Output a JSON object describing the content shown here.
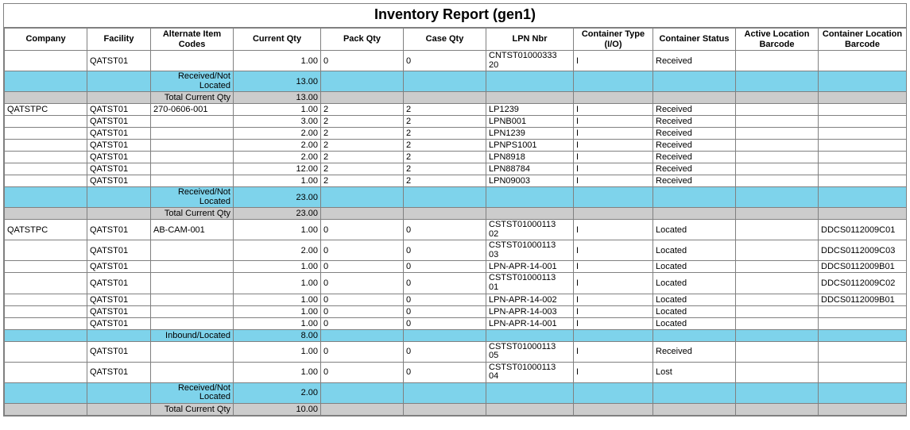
{
  "title": "Inventory Report (gen1)",
  "colors": {
    "highlight": "#7ed3eb",
    "total": "#cccccc",
    "border": "#808080",
    "text": "#000000",
    "background": "#ffffff"
  },
  "columns": [
    "Company",
    "Facility",
    "Alternate Item Codes",
    "Current Qty",
    "Pack Qty",
    "Case Qty",
    "LPN Nbr",
    "Container Type (I/O)",
    "Container Status",
    "Active Location Barcode",
    "Container Location Barcode"
  ],
  "rows": [
    {
      "type": "data",
      "cells": [
        "",
        "QATST01",
        "",
        "1.00",
        "0",
        "0",
        "CNTST01000333\n20",
        "I",
        "Received",
        "",
        ""
      ]
    },
    {
      "type": "highlight",
      "label": "Received/Not Located",
      "qty": "13.00"
    },
    {
      "type": "total",
      "label": "Total Current Qty",
      "qty": "13.00"
    },
    {
      "type": "data",
      "cells": [
        "QATSTPC",
        "QATST01",
        "270-0606-001",
        "1.00",
        "2",
        "2",
        "LP1239",
        "I",
        "Received",
        "",
        ""
      ]
    },
    {
      "type": "data",
      "cells": [
        "",
        "QATST01",
        "",
        "3.00",
        "2",
        "2",
        "LPNB001",
        "I",
        "Received",
        "",
        ""
      ]
    },
    {
      "type": "data",
      "cells": [
        "",
        "QATST01",
        "",
        "2.00",
        "2",
        "2",
        "LPN1239",
        "I",
        "Received",
        "",
        ""
      ]
    },
    {
      "type": "data",
      "cells": [
        "",
        "QATST01",
        "",
        "2.00",
        "2",
        "2",
        "LPNPS1001",
        "I",
        "Received",
        "",
        ""
      ]
    },
    {
      "type": "data",
      "cells": [
        "",
        "QATST01",
        "",
        "2.00",
        "2",
        "2",
        "LPN8918",
        "I",
        "Received",
        "",
        ""
      ]
    },
    {
      "type": "data",
      "cells": [
        "",
        "QATST01",
        "",
        "12.00",
        "2",
        "2",
        "LPN88784",
        "I",
        "Received",
        "",
        ""
      ]
    },
    {
      "type": "data",
      "cells": [
        "",
        "QATST01",
        "",
        "1.00",
        "2",
        "2",
        "LPN09003",
        "I",
        "Received",
        "",
        ""
      ]
    },
    {
      "type": "highlight",
      "label": "Received/Not Located",
      "qty": "23.00"
    },
    {
      "type": "total",
      "label": "Total Current Qty",
      "qty": "23.00"
    },
    {
      "type": "data",
      "cells": [
        "QATSTPC",
        "QATST01",
        "AB-CAM-001",
        "1.00",
        "0",
        "0",
        "CSTST01000113\n02",
        "I",
        "Located",
        "",
        "DDCS0112009C01"
      ]
    },
    {
      "type": "data",
      "cells": [
        "",
        "QATST01",
        "",
        "2.00",
        "0",
        "0",
        "CSTST01000113\n03",
        "I",
        "Located",
        "",
        "DDCS0112009C03"
      ]
    },
    {
      "type": "data",
      "cells": [
        "",
        "QATST01",
        "",
        "1.00",
        "0",
        "0",
        "LPN-APR-14-001",
        "I",
        "Located",
        "",
        "DDCS0112009B01"
      ]
    },
    {
      "type": "data",
      "cells": [
        "",
        "QATST01",
        "",
        "1.00",
        "0",
        "0",
        "CSTST01000113\n01",
        "I",
        "Located",
        "",
        "DDCS0112009C02"
      ]
    },
    {
      "type": "data",
      "cells": [
        "",
        "QATST01",
        "",
        "1.00",
        "0",
        "0",
        "LPN-APR-14-002",
        "I",
        "Located",
        "",
        "DDCS0112009B01"
      ]
    },
    {
      "type": "data",
      "cells": [
        "",
        "QATST01",
        "",
        "1.00",
        "0",
        "0",
        "LPN-APR-14-003",
        "I",
        "Located",
        "",
        ""
      ]
    },
    {
      "type": "data",
      "cells": [
        "",
        "QATST01",
        "",
        "1.00",
        "0",
        "0",
        "LPN-APR-14-001",
        "I",
        "Located",
        "",
        ""
      ]
    },
    {
      "type": "highlight",
      "label": "Inbound/Located",
      "qty": "8.00"
    },
    {
      "type": "data",
      "cells": [
        "",
        "QATST01",
        "",
        "1.00",
        "0",
        "0",
        "CSTST01000113\n05",
        "I",
        "Received",
        "",
        ""
      ]
    },
    {
      "type": "data",
      "cells": [
        "",
        "QATST01",
        "",
        "1.00",
        "0",
        "0",
        "CSTST01000113\n04",
        "I",
        "Lost",
        "",
        ""
      ]
    },
    {
      "type": "highlight",
      "label": "Received/Not Located",
      "qty": "2.00"
    },
    {
      "type": "total",
      "label": "Total Current Qty",
      "qty": "10.00"
    }
  ]
}
